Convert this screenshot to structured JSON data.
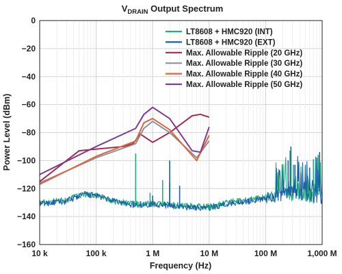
{
  "chart_data": {
    "type": "line",
    "title_main": "V",
    "title_sub": "DRAIN",
    "title_rest": " Output Spectrum",
    "xlabel": "Frequency (Hz)",
    "ylabel": "Power Level (dBm)",
    "x_scale": "log",
    "xlim": [
      10000,
      1000000000
    ],
    "ylim": [
      -160,
      0
    ],
    "grid": true,
    "legend_position": "top-right",
    "x_ticks": [
      {
        "value": 10000,
        "label": "10 k"
      },
      {
        "value": 100000,
        "label": "100 k"
      },
      {
        "value": 1000000,
        "label": "1 M"
      },
      {
        "value": 10000000,
        "label": "10 M"
      },
      {
        "value": 100000000,
        "label": "100 M"
      },
      {
        "value": 1000000000,
        "label": "1,000 M"
      }
    ],
    "y_ticks": [
      {
        "value": 0,
        "label": "0"
      },
      {
        "value": -20,
        "label": "−20"
      },
      {
        "value": -40,
        "label": "−40"
      },
      {
        "value": -60,
        "label": "−60"
      },
      {
        "value": -80,
        "label": "−80"
      },
      {
        "value": -100,
        "label": "−100"
      },
      {
        "value": -120,
        "label": "−120"
      },
      {
        "value": -140,
        "label": "−140"
      },
      {
        "value": -160,
        "label": "−160"
      }
    ],
    "series": [
      {
        "name": "LT8608 + HMC920 (INT)",
        "color": "#1fb07a",
        "style": "noise",
        "floor": [
          [
            10000,
            -130
          ],
          [
            30000,
            -128
          ],
          [
            60000,
            -124
          ],
          [
            100000,
            -125
          ],
          [
            200000,
            -129
          ],
          [
            500000,
            -131
          ],
          [
            1000000,
            -131
          ],
          [
            3000000,
            -132
          ],
          [
            10000000,
            -133
          ],
          [
            20000000,
            -130
          ],
          [
            50000000,
            -128
          ],
          [
            100000000,
            -126
          ],
          [
            200000000,
            -124
          ],
          [
            400000000,
            -122
          ],
          [
            1000000000,
            -122
          ]
        ],
        "spurs": [
          [
            500000,
            -95
          ],
          [
            1500000,
            -114
          ],
          [
            2000000,
            -116
          ],
          [
            900000,
            -123
          ],
          [
            270000000,
            -93
          ],
          [
            310000000,
            -103
          ],
          [
            700000000,
            -99
          ],
          [
            850000000,
            -96
          ]
        ]
      },
      {
        "name": "LT8608 + HMC920 (EXT)",
        "color": "#1a5fa8",
        "style": "noise",
        "floor": [
          [
            10000,
            -131
          ],
          [
            30000,
            -129
          ],
          [
            60000,
            -124
          ],
          [
            100000,
            -125
          ],
          [
            200000,
            -129
          ],
          [
            500000,
            -132
          ],
          [
            1000000,
            -131
          ],
          [
            3000000,
            -133
          ],
          [
            10000000,
            -134
          ],
          [
            20000000,
            -131
          ],
          [
            50000000,
            -129
          ],
          [
            100000000,
            -127
          ],
          [
            200000000,
            -124
          ],
          [
            400000000,
            -121
          ],
          [
            1000000000,
            -122
          ]
        ],
        "spurs": [
          [
            2000000,
            -100
          ],
          [
            1000000,
            -125
          ],
          [
            3000000,
            -118
          ],
          [
            250000000,
            -100
          ],
          [
            280000000,
            -90
          ],
          [
            330000000,
            -103
          ],
          [
            600000000,
            -105
          ],
          [
            900000000,
            -94
          ]
        ]
      },
      {
        "name": "Max. Allowable Ripple (20 GHz)",
        "color": "#a8284a",
        "style": "line",
        "points": [
          [
            10000,
            -115
          ],
          [
            50000,
            -93
          ],
          [
            300000,
            -90
          ],
          [
            450000,
            -88
          ],
          [
            600000,
            -81
          ],
          [
            1000000,
            -87
          ],
          [
            2000000,
            -80
          ],
          [
            5000000,
            -68
          ],
          [
            7000000,
            -67
          ],
          [
            10000000,
            -69
          ]
        ]
      },
      {
        "name": "Max. Allowable Ripple (30 GHz)",
        "color": "#8a93a4",
        "style": "line",
        "points": [
          [
            10000,
            -116
          ],
          [
            100000,
            -98
          ],
          [
            500000,
            -88
          ],
          [
            700000,
            -77
          ],
          [
            1000000,
            -72
          ],
          [
            2000000,
            -80
          ],
          [
            6000000,
            -98
          ],
          [
            10000000,
            -86
          ]
        ]
      },
      {
        "name": "Max. Allowable Ripple (40 GHz)",
        "color": "#e0663a",
        "style": "line",
        "points": [
          [
            10000,
            -117
          ],
          [
            100000,
            -97
          ],
          [
            500000,
            -86
          ],
          [
            700000,
            -73
          ],
          [
            1000000,
            -70
          ],
          [
            2000000,
            -78
          ],
          [
            6000000,
            -100
          ],
          [
            10000000,
            -82
          ]
        ]
      },
      {
        "name": "Max. Allowable Ripple (50 GHz)",
        "color": "#7d3a96",
        "style": "line",
        "points": [
          [
            10000,
            -110
          ],
          [
            100000,
            -90
          ],
          [
            500000,
            -77
          ],
          [
            700000,
            -67
          ],
          [
            1000000,
            -62
          ],
          [
            2000000,
            -70
          ],
          [
            5000000,
            -93
          ],
          [
            7000000,
            -94
          ],
          [
            10000000,
            -76
          ]
        ]
      }
    ]
  }
}
